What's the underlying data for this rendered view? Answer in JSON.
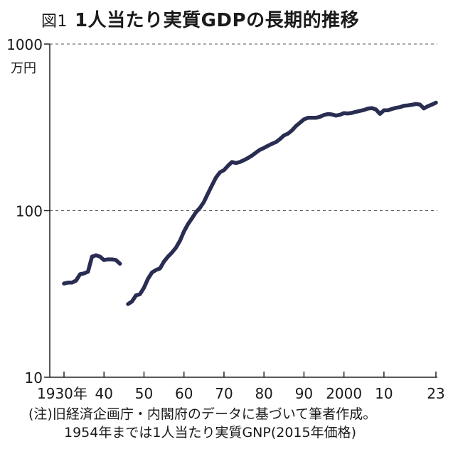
{
  "figure_label": "図1",
  "chart_data": {
    "type": "line",
    "title": "1人当たり実質GDPの長期的推移",
    "ylabel": "万円",
    "yscale": "log",
    "ylim": [
      10,
      1000
    ],
    "xlim": [
      1930,
      2023
    ],
    "grid": "horizontal dashed at 100 and 1000",
    "y_ticks": [
      {
        "value": 1000,
        "label": "1000"
      },
      {
        "value": 100,
        "label": "100"
      },
      {
        "value": 10,
        "label": "10"
      }
    ],
    "x_ticks": [
      {
        "value": 1930,
        "label": "1930年"
      },
      {
        "value": 1940,
        "label": "40"
      },
      {
        "value": 1950,
        "label": "50"
      },
      {
        "value": 1960,
        "label": "60"
      },
      {
        "value": 1970,
        "label": "70"
      },
      {
        "value": 1980,
        "label": "80"
      },
      {
        "value": 1990,
        "label": "90"
      },
      {
        "value": 2000,
        "label": "2000"
      },
      {
        "value": 2010,
        "label": "10"
      },
      {
        "value": 2023,
        "label": "23"
      }
    ],
    "color": "#2a2d52",
    "series": [
      {
        "x": [
          1930,
          1931,
          1932,
          1933,
          1934,
          1935,
          1936,
          1937,
          1938,
          1939,
          1940,
          1941,
          1942,
          1943,
          1944
        ],
        "y": [
          36.5,
          37,
          37,
          38,
          41.5,
          42,
          43,
          53,
          54,
          53,
          50.5,
          51,
          51,
          50.5,
          48
        ]
      },
      {
        "x": [
          1946,
          1947,
          1948,
          1949,
          1950,
          1951,
          1952,
          1953,
          1954,
          1955,
          1956,
          1957,
          1958,
          1959,
          1960,
          1961,
          1962,
          1963,
          1964,
          1965,
          1966,
          1967,
          1968,
          1969,
          1970,
          1971,
          1972,
          1973,
          1974,
          1975,
          1976,
          1977,
          1978,
          1979,
          1980,
          1981,
          1982,
          1983,
          1984,
          1985,
          1986,
          1987,
          1988,
          1989,
          1990,
          1991,
          1992,
          1993,
          1994,
          1995,
          1996,
          1997,
          1998,
          1999,
          2000,
          2001,
          2002,
          2003,
          2004,
          2005,
          2006,
          2007,
          2008,
          2009,
          2010,
          2011,
          2012,
          2013,
          2014,
          2015,
          2016,
          2017,
          2018,
          2019,
          2020,
          2021,
          2022,
          2023
        ],
        "y": [
          27.5,
          28.5,
          31,
          31.5,
          34.5,
          39,
          42.5,
          44,
          45,
          49.5,
          53,
          56,
          60,
          66,
          75,
          83,
          90,
          98,
          104,
          113,
          127,
          142,
          158,
          170,
          175,
          186,
          196,
          193,
          196,
          201,
          207,
          214,
          223,
          232,
          238,
          245,
          252,
          258,
          269,
          283,
          290,
          303,
          322,
          337,
          353,
          361,
          361,
          361,
          366,
          375,
          380,
          378,
          372,
          376,
          385,
          383,
          386,
          392,
          397,
          402,
          410,
          413,
          405,
          381,
          400,
          400,
          408,
          414,
          418,
          426,
          428,
          432,
          437,
          433,
          411,
          424,
          433,
          445
        ]
      }
    ]
  },
  "note_line1": "(注)旧経済企画庁・内閣府のデータに基づいて筆者作成。",
  "note_line2": "1954年までは1人当たり実質GNP(2015年価格)"
}
